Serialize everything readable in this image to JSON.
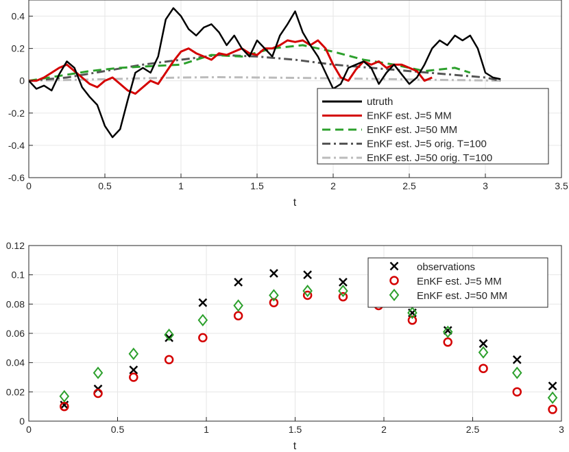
{
  "chart_data": [
    {
      "type": "line",
      "xlabel": "t",
      "ylabel": "",
      "xlim": [
        0,
        3.5
      ],
      "ylim": [
        -0.6,
        0.5
      ],
      "xticks": [
        "0",
        "0.5",
        "1",
        "1.5",
        "2",
        "2.5",
        "3",
        "3.5"
      ],
      "yticks": [
        "-0.6",
        "-0.4",
        "-0.2",
        "0",
        "0.2",
        "0.4"
      ],
      "grid": true,
      "legend_position": "lower-right",
      "series": [
        {
          "name": "utruth",
          "color": "#000000",
          "style": "solid",
          "x": [
            0,
            0.05,
            0.1,
            0.15,
            0.2,
            0.25,
            0.3,
            0.35,
            0.4,
            0.45,
            0.5,
            0.55,
            0.6,
            0.65,
            0.7,
            0.75,
            0.8,
            0.85,
            0.9,
            0.95,
            1.0,
            1.05,
            1.1,
            1.15,
            1.2,
            1.25,
            1.3,
            1.35,
            1.4,
            1.45,
            1.5,
            1.55,
            1.6,
            1.65,
            1.7,
            1.75,
            1.8,
            1.85,
            1.9,
            1.95,
            2.0,
            2.05,
            2.1,
            2.15,
            2.2,
            2.25,
            2.3,
            2.35,
            2.4,
            2.45,
            2.5,
            2.55,
            2.6,
            2.65,
            2.7,
            2.75,
            2.8,
            2.85,
            2.9,
            2.95,
            3.0,
            3.05,
            3.1
          ],
          "y": [
            0,
            -0.05,
            -0.03,
            -0.06,
            0.04,
            0.12,
            0.08,
            -0.04,
            -0.1,
            -0.15,
            -0.28,
            -0.35,
            -0.3,
            -0.12,
            0.05,
            0.08,
            0.05,
            0.15,
            0.38,
            0.45,
            0.4,
            0.32,
            0.28,
            0.33,
            0.35,
            0.3,
            0.22,
            0.28,
            0.2,
            0.15,
            0.25,
            0.2,
            0.15,
            0.28,
            0.35,
            0.43,
            0.3,
            0.22,
            0.15,
            0.05,
            -0.05,
            -0.02,
            0.08,
            0.1,
            0.12,
            0.08,
            -0.02,
            0.05,
            0.1,
            0.04,
            -0.02,
            0.02,
            0.1,
            0.2,
            0.25,
            0.22,
            0.28,
            0.25,
            0.28,
            0.2,
            0.05,
            0.02,
            0.01
          ]
        },
        {
          "name": "EnKF est. J=5 MM",
          "color": "#d40000",
          "style": "solid",
          "x": [
            0,
            0.05,
            0.1,
            0.15,
            0.2,
            0.25,
            0.3,
            0.35,
            0.4,
            0.45,
            0.5,
            0.55,
            0.6,
            0.65,
            0.7,
            0.75,
            0.8,
            0.85,
            0.9,
            0.95,
            1.0,
            1.05,
            1.1,
            1.15,
            1.2,
            1.25,
            1.3,
            1.35,
            1.4,
            1.45,
            1.5,
            1.55,
            1.6,
            1.65,
            1.7,
            1.75,
            1.8,
            1.85,
            1.9,
            1.95,
            2.0,
            2.05,
            2.1,
            2.15,
            2.2,
            2.25,
            2.3,
            2.35,
            2.4,
            2.45,
            2.5,
            2.55,
            2.6,
            2.65
          ],
          "y": [
            0,
            0.0,
            0.02,
            0.05,
            0.08,
            0.1,
            0.06,
            0.02,
            -0.02,
            -0.04,
            0.0,
            0.02,
            -0.02,
            -0.06,
            -0.08,
            -0.04,
            0.0,
            -0.02,
            0.05,
            0.12,
            0.18,
            0.2,
            0.17,
            0.15,
            0.13,
            0.17,
            0.16,
            0.18,
            0.2,
            0.17,
            0.16,
            0.2,
            0.2,
            0.22,
            0.25,
            0.24,
            0.25,
            0.22,
            0.25,
            0.2,
            0.1,
            0.02,
            0.0,
            0.07,
            0.12,
            0.1,
            0.12,
            0.08,
            0.1,
            0.1,
            0.08,
            0.06,
            0.0,
            0.02
          ]
        },
        {
          "name": "EnKF est. J=50 MM",
          "color": "#2ca02c",
          "style": "dashed",
          "x": [
            0,
            0.2,
            0.4,
            0.6,
            0.8,
            1.0,
            1.2,
            1.4,
            1.6,
            1.8,
            2.0,
            2.2,
            2.4,
            2.6,
            2.8,
            2.9
          ],
          "y": [
            0,
            0.03,
            0.06,
            0.08,
            0.09,
            0.1,
            0.16,
            0.15,
            0.2,
            0.22,
            0.18,
            0.13,
            0.1,
            0.06,
            0.08,
            0.05
          ]
        },
        {
          "name": "EnKF est. J=5 orig. T=100",
          "color": "#555555",
          "style": "dashdot",
          "x": [
            0,
            0.25,
            0.5,
            0.75,
            1.0,
            1.25,
            1.5,
            1.75,
            2.0,
            2.25,
            2.5,
            2.75,
            3.0,
            3.1
          ],
          "y": [
            0,
            0.02,
            0.06,
            0.1,
            0.13,
            0.16,
            0.15,
            0.13,
            0.1,
            0.08,
            0.06,
            0.04,
            0.02,
            0.0
          ]
        },
        {
          "name": "EnKF est. J=50 orig. T=100",
          "color": "#bbbbbb",
          "style": "dashdot",
          "x": [
            0,
            0.25,
            0.5,
            0.75,
            1.0,
            1.25,
            1.5,
            1.75,
            2.0,
            2.25,
            2.5,
            2.75,
            3.0,
            3.1
          ],
          "y": [
            0,
            0.005,
            0.01,
            0.015,
            0.02,
            0.022,
            0.02,
            0.018,
            0.015,
            0.012,
            0.008,
            0.005,
            0.002,
            0.0
          ]
        }
      ]
    },
    {
      "type": "scatter",
      "xlabel": "t",
      "ylabel": "",
      "xlim": [
        0,
        3
      ],
      "ylim": [
        0,
        0.12
      ],
      "xticks": [
        "0",
        "0.5",
        "1",
        "1.5",
        "2",
        "2.5",
        "3"
      ],
      "yticks": [
        "0",
        "0.02",
        "0.04",
        "0.06",
        "0.08",
        "0.1",
        "0.12"
      ],
      "grid": true,
      "legend_position": "top-right",
      "x": [
        0.2,
        0.39,
        0.59,
        0.79,
        0.98,
        1.18,
        1.38,
        1.57,
        1.77,
        1.97,
        2.16,
        2.36,
        2.56,
        2.75,
        2.95
      ],
      "series": [
        {
          "name": "observations",
          "color": "#000000",
          "marker": "x",
          "values": [
            0.011,
            0.022,
            0.035,
            0.057,
            0.081,
            0.095,
            0.101,
            0.1,
            0.095,
            0.082,
            0.074,
            0.062,
            0.053,
            0.042,
            0.024
          ]
        },
        {
          "name": "EnKF est. J=5 MM",
          "color": "#d40000",
          "marker": "o",
          "values": [
            0.01,
            0.019,
            0.03,
            0.042,
            0.057,
            0.072,
            0.081,
            0.086,
            0.085,
            0.079,
            0.069,
            0.054,
            0.036,
            0.02,
            0.008
          ]
        },
        {
          "name": "EnKF est. J=50 MM",
          "color": "#2ca02c",
          "marker": "diamond",
          "values": [
            0.017,
            0.033,
            0.046,
            0.059,
            0.069,
            0.079,
            0.086,
            0.089,
            0.089,
            0.082,
            0.074,
            0.061,
            0.047,
            0.033,
            0.016
          ]
        }
      ]
    }
  ]
}
